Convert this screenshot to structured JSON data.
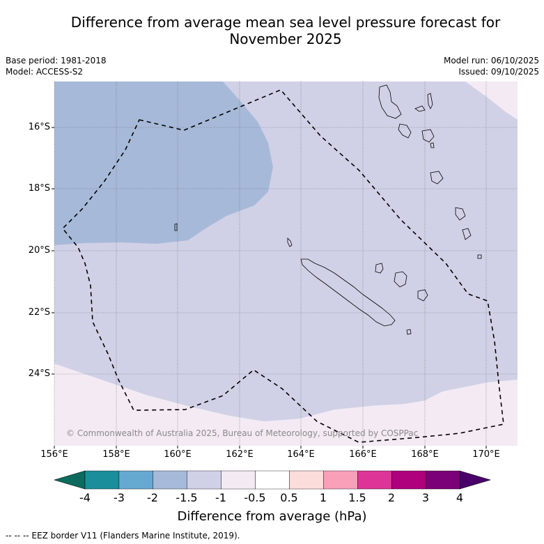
{
  "title_line1": "Difference from average mean sea level pressure forecast for",
  "title_line2": "November 2025",
  "info_left": {
    "base_period": "Base period: 1981-2018",
    "model": "Model: ACCESS-S2"
  },
  "info_right": {
    "model_run": "Model run: 06/10/2025",
    "issued": "Issued: 09/10/2025"
  },
  "map": {
    "lat_labels": [
      "16°S",
      "18°S",
      "20°S",
      "22°S",
      "24°S"
    ],
    "lon_labels": [
      "156°E",
      "158°E",
      "160°E",
      "162°E",
      "164°E",
      "166°E",
      "168°E",
      "170°E"
    ],
    "copyright": "© Commonwealth of Australia 2025, Bureau of Meteorology, supported by COSPPac",
    "region_colors": {
      "minus2_to_minus1_5": "#a7b9d9",
      "minus1_5_to_minus1": "#d0d1e6",
      "minus1_to_minus0_5": "#f3eaf4"
    }
  },
  "colorbar": {
    "ticks": [
      "-4",
      "-3",
      "-2",
      "-1.5",
      "-1",
      "-0.5",
      "0.5",
      "1",
      "1.5",
      "2",
      "3",
      "4"
    ],
    "colors": [
      "#1a8e9a",
      "#66a9d0",
      "#a7b9d9",
      "#d0d1e6",
      "#f3eaf4",
      "#ffffff",
      "#fddcdc",
      "#f99fb8",
      "#dc3597",
      "#ae017e",
      "#7a0177"
    ],
    "under_color": "#0d6b5e",
    "over_color": "#49006a",
    "title": "Difference from average (hPa)"
  },
  "footer": "--  --  -- EEZ border V11 (Flanders Marine Institute, 2019)."
}
